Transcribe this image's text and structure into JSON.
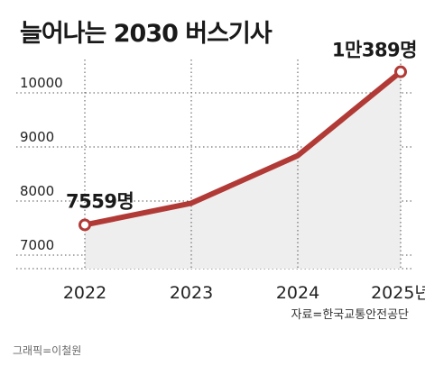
{
  "chart_data": {
    "type": "line",
    "title": "늘어나는 2030 버스기사",
    "categories": [
      "2022",
      "2023",
      "2024",
      "2025년"
    ],
    "values": [
      7559,
      7960,
      8840,
      10389
    ],
    "ylim": [
      6750,
      10550
    ],
    "yticks": [
      7000,
      8000,
      9000,
      10000
    ],
    "grid": true,
    "data_labels": [
      {
        "index": 0,
        "text": "7559명"
      },
      {
        "index": 3,
        "text": "1만389명"
      }
    ],
    "source": "자료=한국교통안전공단",
    "credit": "그래픽=이철원",
    "colors": {
      "line": "#b23a36",
      "marker_fill": "#ffffff",
      "area": "#eeeeee",
      "grid": "#555555"
    }
  }
}
